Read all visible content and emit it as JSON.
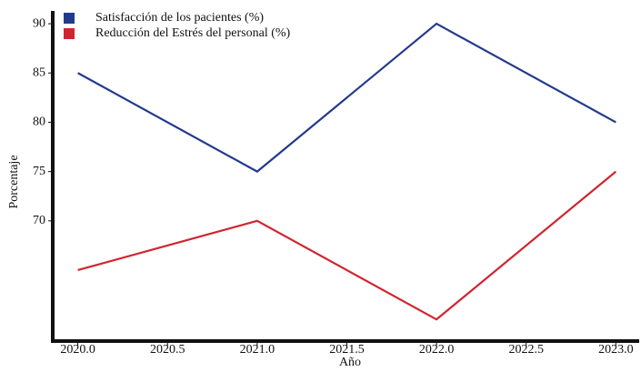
{
  "chart_data": {
    "type": "line",
    "x_label": "Año",
    "y_label": "Porcentaje",
    "x": [
      2020,
      2021,
      2022,
      2023
    ],
    "series": [
      {
        "name": "Satisfacción de los pacientes (%)",
        "color": "#233a8c",
        "values": [
          85,
          75,
          90,
          80
        ]
      },
      {
        "name": "Reducción del Estrés del personal (%)",
        "color": "#d02530",
        "values": [
          65,
          70,
          60,
          75
        ]
      }
    ],
    "xlim": [
      2019.86,
      2023.13
    ],
    "xticks": [
      {
        "value": 2020,
        "label": "2020.0"
      },
      {
        "value": 2020.5,
        "label": "2020.5"
      },
      {
        "value": 2021,
        "label": "2021.0"
      },
      {
        "value": 2021.5,
        "label": "2021.5"
      },
      {
        "value": 2022,
        "label": "2022.0"
      },
      {
        "value": 2022.5,
        "label": "2022.5"
      },
      {
        "value": 2023,
        "label": "2023.0"
      }
    ],
    "ylim": [
      57.8,
      91.3
    ],
    "yticks": [
      70,
      75,
      80,
      85,
      90
    ],
    "legend": "upper left"
  }
}
